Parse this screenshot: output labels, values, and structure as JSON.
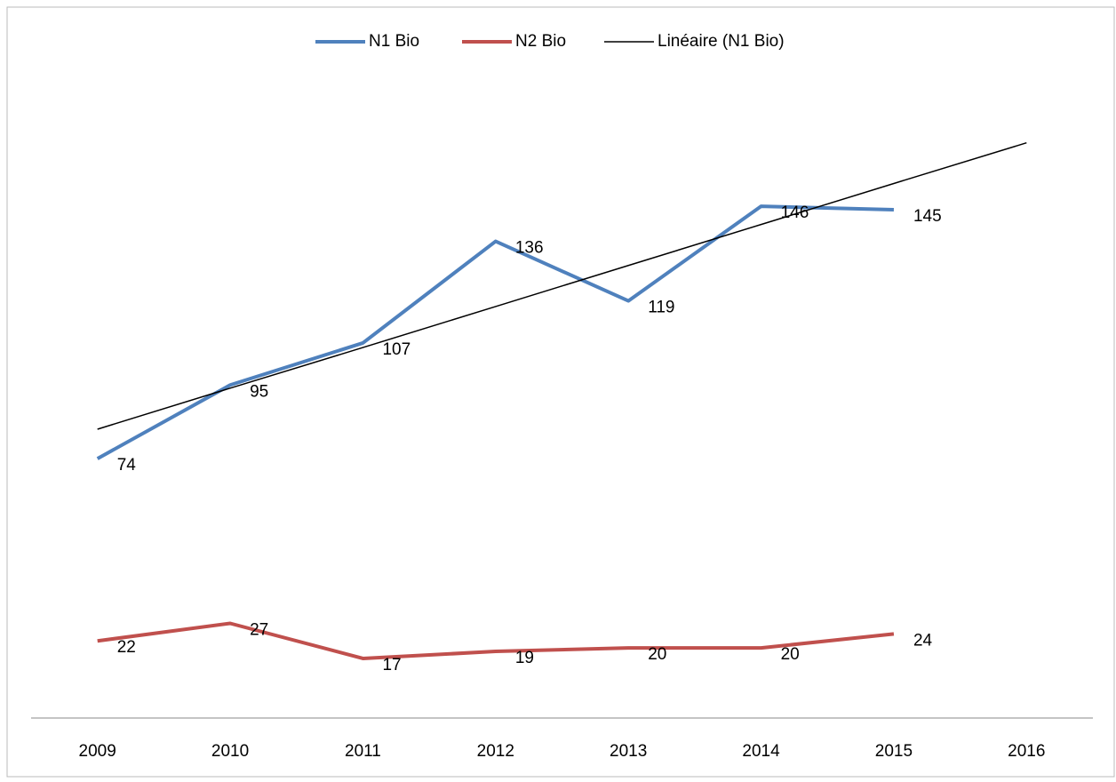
{
  "chart_data": {
    "type": "line",
    "categories": [
      "2009",
      "2010",
      "2011",
      "2012",
      "2013",
      "2014",
      "2015",
      "2016"
    ],
    "series": [
      {
        "name": "N1 Bio",
        "color": "#4f81bd",
        "values": [
          74,
          95,
          107,
          136,
          119,
          146,
          145,
          null
        ]
      },
      {
        "name": "N2 Bio",
        "color": "#c0504d",
        "values": [
          22,
          27,
          17,
          19,
          20,
          20,
          24,
          null
        ]
      },
      {
        "name": "Linéaire (N1 Bio)",
        "color": "#000000",
        "trendline": true,
        "values": [
          82.4,
          94.1,
          105.7,
          117.4,
          129.1,
          140.8,
          152.5,
          164.1
        ]
      }
    ],
    "ylim": [
      0,
      180
    ],
    "legend": "top"
  }
}
